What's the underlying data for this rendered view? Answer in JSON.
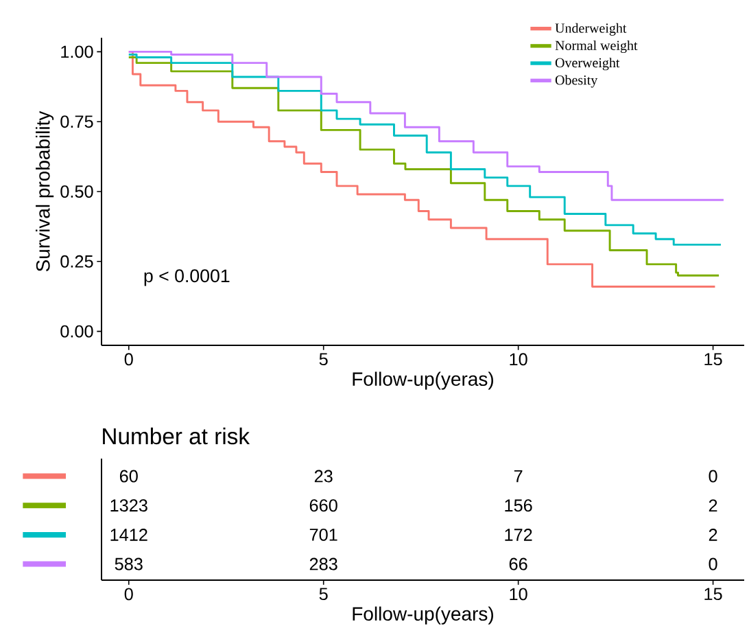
{
  "chart_data": [
    {
      "type": "step",
      "xlabel": "Follow-up(yeras)",
      "ylabel": "Survival probability",
      "legend": "top right",
      "grid": false,
      "xlim": [
        -0.7,
        15.8
      ],
      "ylim": [
        -0.05,
        1.05
      ],
      "xticks": [
        0,
        5,
        10,
        15
      ],
      "yticks": [
        {
          "value": 0,
          "label": "0.00"
        },
        {
          "value": 0.25,
          "label": "0.25"
        },
        {
          "value": 0.5,
          "label": "0.50"
        },
        {
          "value": 0.75,
          "label": "0.75"
        },
        {
          "value": 1,
          "label": "1.00"
        }
      ],
      "annotations": [
        "p < 0.0001"
      ],
      "series": [
        {
          "name": "Underweight",
          "color": "#f8766d",
          "x": [
            0,
            0.1,
            0.3,
            1.2,
            1.5,
            1.9,
            2.3,
            3.2,
            3.6,
            4.0,
            4.3,
            4.5,
            4.94,
            5.34,
            5.87,
            7.09,
            7.44,
            7.7,
            8.27,
            9.18,
            10.75,
            11.9,
            15.05
          ],
          "values": [
            1.0,
            0.92,
            0.88,
            0.86,
            0.82,
            0.79,
            0.75,
            0.73,
            0.68,
            0.66,
            0.64,
            0.6,
            0.57,
            0.52,
            0.49,
            0.47,
            0.43,
            0.4,
            0.37,
            0.33,
            0.24,
            0.16,
            0.16
          ]
        },
        {
          "name": "Normal weight",
          "color": "#7cae00",
          "x": [
            0,
            0.2,
            1.09,
            2.66,
            3.84,
            4.94,
            5.94,
            6.81,
            7.1,
            8.27,
            9.14,
            9.72,
            10.54,
            11.19,
            12.35,
            13.3,
            14.05,
            14.1,
            15.15
          ],
          "values": [
            0.98,
            0.96,
            0.93,
            0.87,
            0.79,
            0.72,
            0.65,
            0.6,
            0.58,
            0.53,
            0.47,
            0.43,
            0.4,
            0.36,
            0.29,
            0.24,
            0.21,
            0.2,
            0.2
          ]
        },
        {
          "name": "Overweight",
          "color": "#00bfc4",
          "x": [
            0,
            0.2,
            1.09,
            2.66,
            3.84,
            4.94,
            5.34,
            5.94,
            6.81,
            7.65,
            8.27,
            9.14,
            9.72,
            10.3,
            11.19,
            12.24,
            12.95,
            13.53,
            13.99,
            15.2
          ],
          "values": [
            0.99,
            0.98,
            0.96,
            0.91,
            0.86,
            0.79,
            0.76,
            0.74,
            0.7,
            0.64,
            0.58,
            0.55,
            0.52,
            0.48,
            0.42,
            0.38,
            0.35,
            0.33,
            0.31,
            0.31
          ]
        },
        {
          "name": "Obesity",
          "color": "#c77cff",
          "x": [
            0,
            0.18,
            1.09,
            2.66,
            3.54,
            4.94,
            5.34,
            6.2,
            7.09,
            7.97,
            8.85,
            9.72,
            10.54,
            12.3,
            12.4,
            15.27
          ],
          "values": [
            1.0,
            1.0,
            0.99,
            0.96,
            0.91,
            0.85,
            0.82,
            0.78,
            0.73,
            0.68,
            0.64,
            0.59,
            0.57,
            0.52,
            0.47,
            0.47
          ]
        }
      ]
    },
    {
      "type": "heatmap",
      "title": "Number at risk",
      "xlabel": "Follow-up(years)",
      "data_labels": true,
      "categories": [
        "0",
        "5",
        "10",
        "15"
      ],
      "y_categories": [
        null,
        null,
        null,
        null
      ],
      "cells": [
        [
          60,
          23,
          7,
          0
        ],
        [
          1323,
          660,
          156,
          2
        ],
        [
          1412,
          701,
          172,
          2
        ],
        [
          583,
          283,
          66,
          0
        ]
      ]
    }
  ]
}
